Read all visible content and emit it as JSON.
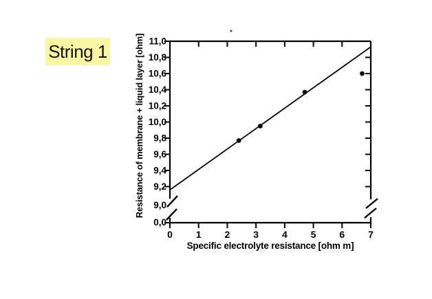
{
  "page": {
    "background_color": "#ffffff"
  },
  "string_label": {
    "text": "String 1",
    "highlight_color": "#FAF7A2",
    "text_color": "#141414"
  },
  "chart_data": {
    "type": "scatter",
    "title": "",
    "xlabel": "Specific electrolyte resistance [ohm m]",
    "ylabel": "Resistance of membrane + liquid layer [ohm]",
    "xlim": [
      0,
      7
    ],
    "ylim_upper": [
      9.0,
      11.0
    ],
    "x_ticks": [
      0,
      1,
      2,
      3,
      4,
      5,
      6,
      7
    ],
    "y_upper_ticks": [
      11.0,
      10.8,
      10.6,
      10.4,
      10.2,
      10.0,
      9.8,
      9.6,
      9.4,
      9.2
    ],
    "y_break_label": "9,0",
    "y_origin_label": "0,0",
    "decimal_comma": true,
    "axis_break": {
      "between": [
        0.0,
        9.0
      ],
      "sides": [
        "left",
        "right"
      ]
    },
    "grid": false,
    "legend": false,
    "points": [
      {
        "x": 2.4,
        "y": 9.77
      },
      {
        "x": 3.15,
        "y": 9.95
      },
      {
        "x": 4.7,
        "y": 10.37
      },
      {
        "x": 6.7,
        "y": 10.6
      }
    ],
    "fit_line": {
      "x0": 0,
      "y0": 9.16,
      "x1": 7,
      "y1": 10.93
    },
    "colors": {
      "axis": "#000000",
      "point": "#000000",
      "line": "#000000",
      "text": "#000000",
      "speck": "#444444"
    }
  }
}
